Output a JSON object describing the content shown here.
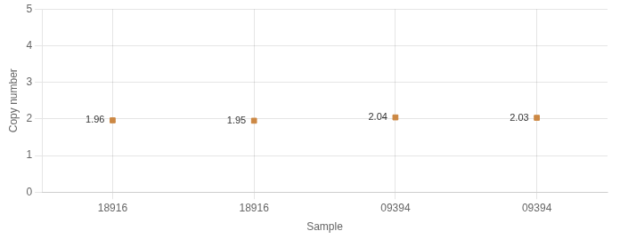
{
  "chart_data": {
    "type": "scatter",
    "xlabel": "Sample",
    "ylabel": "Copy number",
    "categories": [
      "18916",
      "18916",
      "09394",
      "09394"
    ],
    "values": [
      1.96,
      1.95,
      2.04,
      2.03
    ],
    "errors": [
      0.035,
      0.035,
      0.035,
      0.035
    ],
    "data_labels": true,
    "color": "#CC8844",
    "marker": "square",
    "ylim": [
      0,
      5
    ],
    "yticks": [
      0,
      1,
      2,
      3,
      4,
      5
    ],
    "grid": true
  }
}
